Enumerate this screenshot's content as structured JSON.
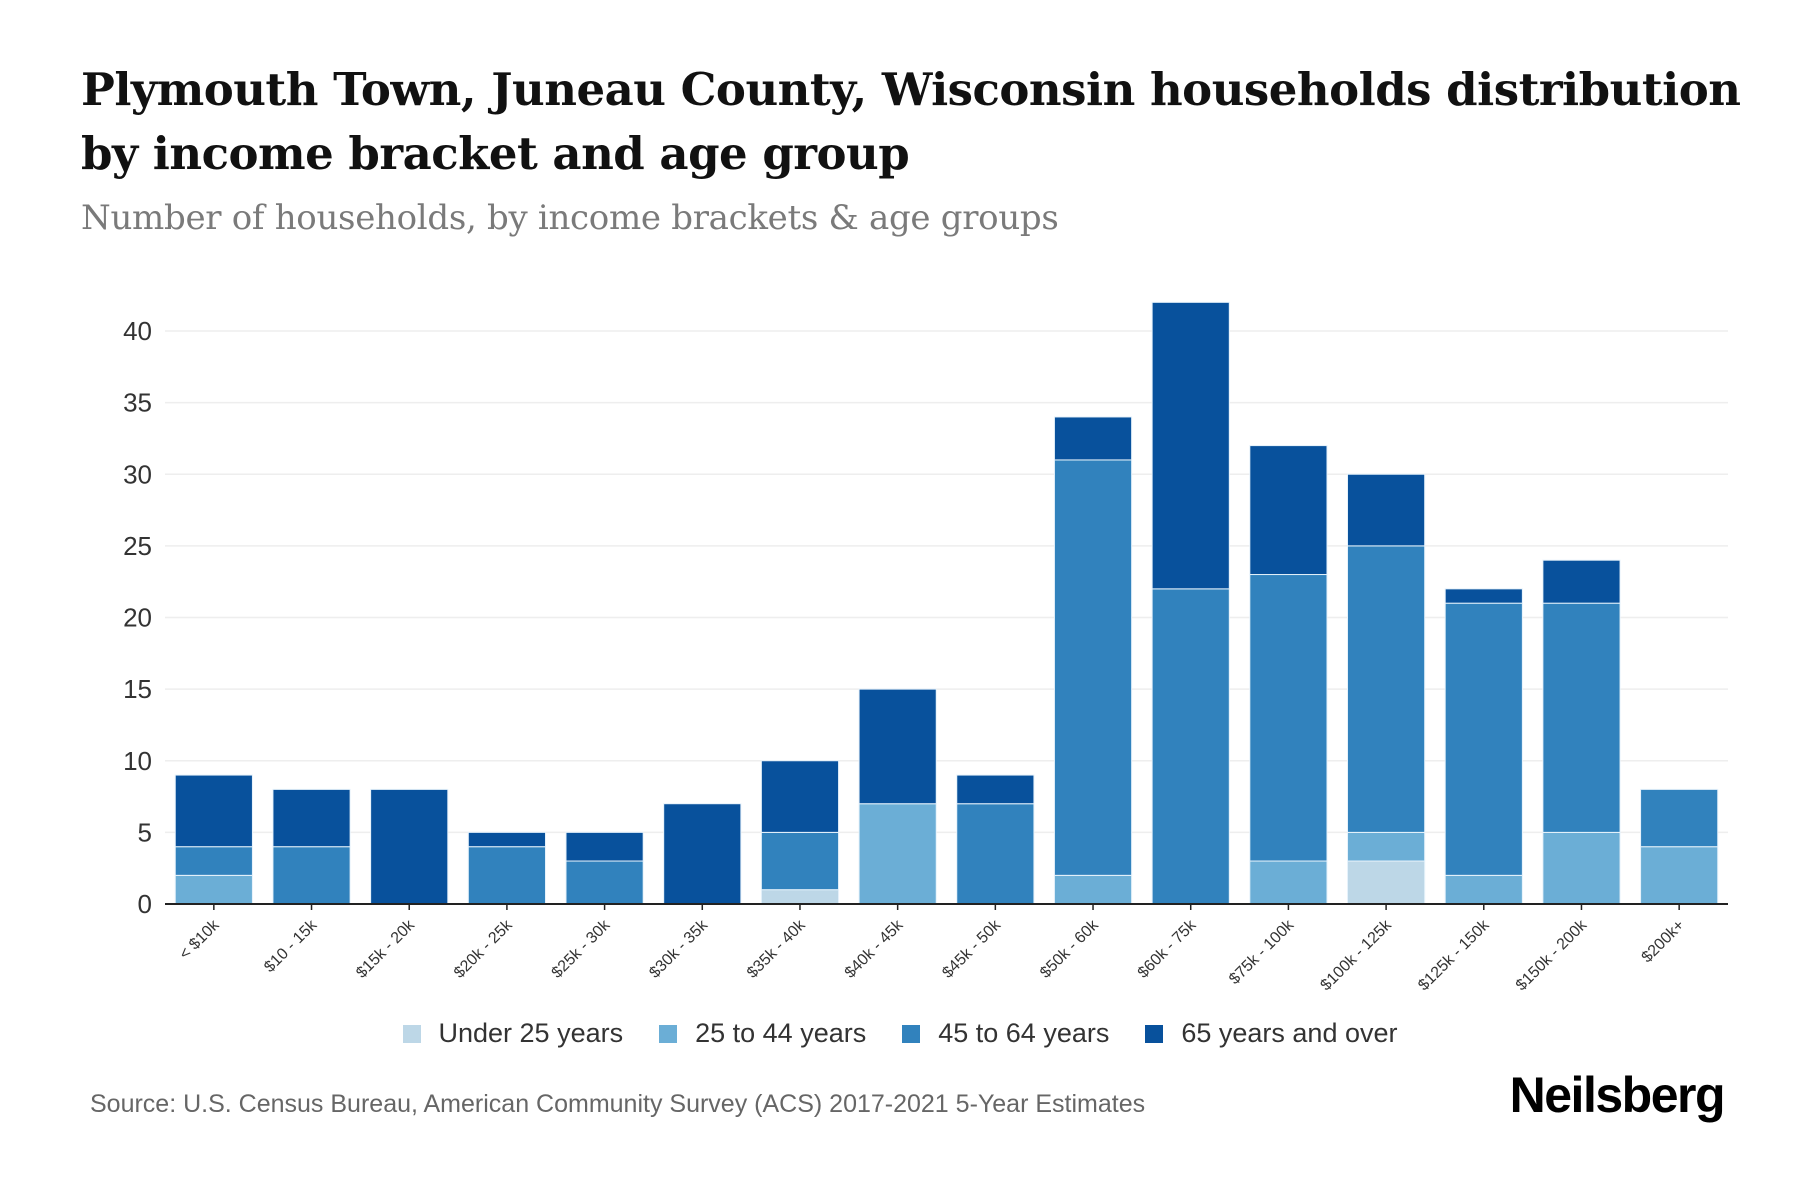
{
  "header": {
    "title": "Plymouth Town, Juneau County, Wisconsin households distribution by income bracket and age group",
    "subtitle": "Number of households, by income brackets & age groups"
  },
  "chart_data": {
    "type": "bar",
    "stacked": true,
    "title": "Plymouth Town, Juneau County, Wisconsin households distribution by income bracket and age group",
    "subtitle": "Number of households, by income brackets & age groups",
    "xlabel": "",
    "ylabel": "",
    "ylim": [
      0,
      42
    ],
    "yticks": [
      0,
      5,
      10,
      15,
      20,
      25,
      30,
      35,
      40
    ],
    "grid": true,
    "legend_position": "bottom-center",
    "categories": [
      "< $10k",
      "$10 - 15k",
      "$15k - 20k",
      "$20k - 25k",
      "$25k - 30k",
      "$30k - 35k",
      "$35k - 40k",
      "$40k - 45k",
      "$45k - 50k",
      "$50k - 60k",
      "$60k - 75k",
      "$75k - 100k",
      "$100k - 125k",
      "$125k - 150k",
      "$150k - 200k",
      "$200k+"
    ],
    "series": [
      {
        "name": "Under 25 years",
        "color": "#bdd7e7",
        "values": [
          0,
          0,
          0,
          0,
          0,
          0,
          1,
          0,
          0,
          0,
          0,
          0,
          3,
          0,
          0,
          0
        ]
      },
      {
        "name": "25 to 44 years",
        "color": "#6baed6",
        "values": [
          2,
          0,
          0,
          0,
          0,
          0,
          0,
          7,
          0,
          2,
          0,
          3,
          2,
          2,
          5,
          4
        ]
      },
      {
        "name": "45 to 64 years",
        "color": "#3182bd",
        "values": [
          2,
          4,
          0,
          4,
          3,
          0,
          4,
          0,
          7,
          29,
          22,
          20,
          20,
          19,
          16,
          4
        ]
      },
      {
        "name": "65 years and over",
        "color": "#08519c",
        "values": [
          5,
          4,
          8,
          1,
          2,
          7,
          5,
          8,
          2,
          3,
          20,
          9,
          5,
          1,
          3,
          0
        ]
      }
    ]
  },
  "legend": [
    {
      "label": "Under 25 years",
      "color": "#bdd7e7"
    },
    {
      "label": "25 to 44 years",
      "color": "#6baed6"
    },
    {
      "label": "45 to 64 years",
      "color": "#3182bd"
    },
    {
      "label": "65 years and over",
      "color": "#08519c"
    }
  ],
  "footer": {
    "source": "Source: U.S. Census Bureau, American Community Survey (ACS) 2017-2021 5-Year Estimates",
    "brand": "Neilsberg"
  }
}
